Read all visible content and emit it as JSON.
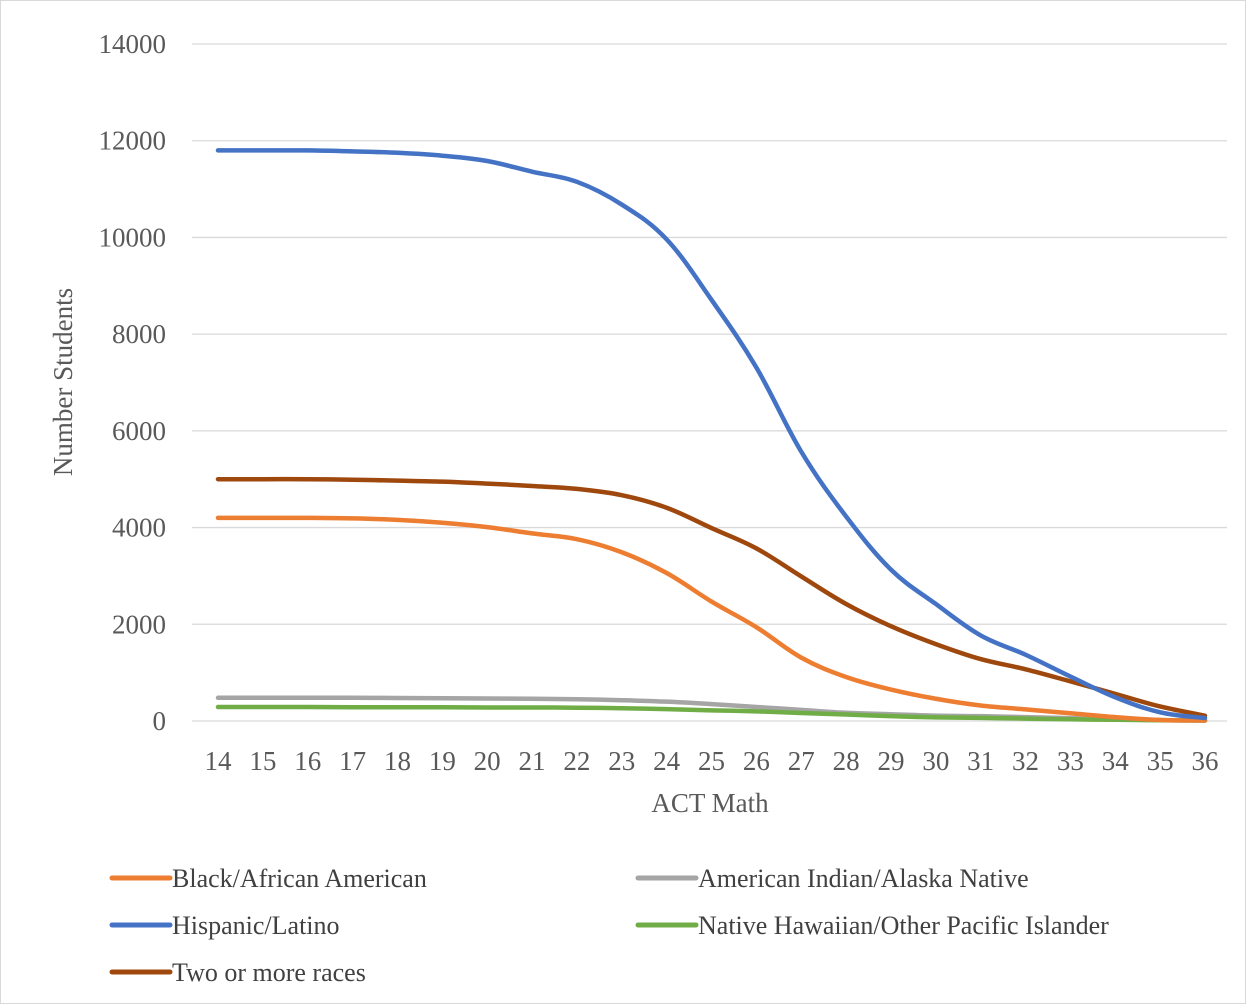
{
  "chart_data": {
    "type": "line",
    "title": "",
    "xlabel": "ACT Math",
    "ylabel": "Number Students",
    "ylim": [
      0,
      14000
    ],
    "y_ticks": [
      0,
      2000,
      4000,
      6000,
      8000,
      10000,
      12000,
      14000
    ],
    "grid": true,
    "legend_placement": "bottom",
    "categories": [
      "14",
      "15",
      "16",
      "17",
      "18",
      "19",
      "20",
      "21",
      "22",
      "23",
      "24",
      "25",
      "26",
      "27",
      "28",
      "29",
      "30",
      "31",
      "32",
      "33",
      "34",
      "35",
      "36"
    ],
    "series": [
      {
        "name": "Black/African American",
        "color": "#ED7D31",
        "values": [
          4200,
          4200,
          4200,
          4190,
          4160,
          4100,
          4010,
          3880,
          3760,
          3490,
          3060,
          2470,
          1940,
          1310,
          910,
          650,
          460,
          320,
          240,
          160,
          80,
          20,
          10
        ]
      },
      {
        "name": "American Indian/Alaska Native",
        "color": "#A5A5A5",
        "values": [
          480,
          480,
          480,
          480,
          475,
          470,
          465,
          460,
          450,
          430,
          400,
          350,
          290,
          230,
          170,
          140,
          110,
          100,
          80,
          60,
          40,
          20,
          10
        ]
      },
      {
        "name": "Hispanic/Latino",
        "color": "#4472C4",
        "values": [
          11800,
          11800,
          11800,
          11780,
          11750,
          11690,
          11580,
          11360,
          11150,
          10680,
          9960,
          8710,
          7310,
          5570,
          4230,
          3130,
          2420,
          1770,
          1370,
          920,
          490,
          180,
          60
        ]
      },
      {
        "name": "Native Hawaiian/Other Pacific Islander",
        "color": "#70AD47",
        "values": [
          290,
          290,
          290,
          285,
          285,
          285,
          280,
          280,
          275,
          265,
          245,
          220,
          200,
          165,
          135,
          100,
          75,
          65,
          50,
          35,
          25,
          15,
          10
        ]
      },
      {
        "name": "Two or more races",
        "color": "#9E480E",
        "values": [
          5000,
          5000,
          5000,
          4990,
          4970,
          4950,
          4910,
          4860,
          4800,
          4670,
          4410,
          3990,
          3570,
          2990,
          2420,
          1960,
          1590,
          1280,
          1070,
          820,
          560,
          300,
          110
        ]
      }
    ],
    "legend": [
      {
        "name": "Black/African American",
        "color": "#ED7D31"
      },
      {
        "name": "American Indian/Alaska Native",
        "color": "#A5A5A5"
      },
      {
        "name": "Hispanic/Latino",
        "color": "#4472C4"
      },
      {
        "name": "Native Hawaiian/Other Pacific Islander",
        "color": "#70AD47"
      },
      {
        "name": "Two or more races",
        "color": "#9E480E"
      }
    ]
  }
}
